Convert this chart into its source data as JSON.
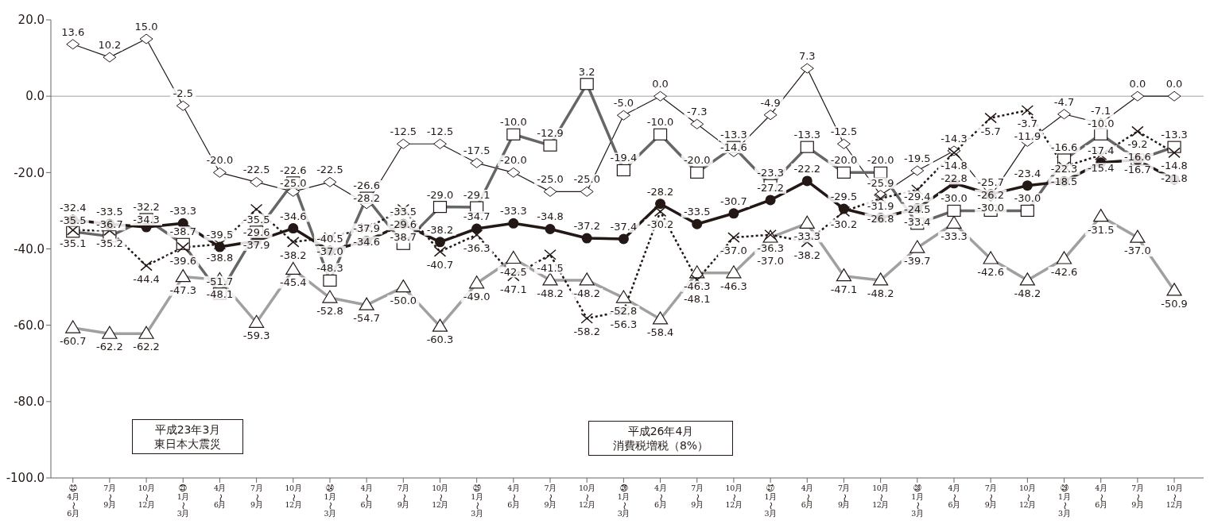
{
  "chart_data": {
    "type": "line",
    "categories": [
      "㉒4月〜6月",
      "7月〜9月",
      "10月〜12月",
      "㉓1月〜3月",
      "4月〜6月",
      "7月〜9月",
      "10月〜12月",
      "㉔1月〜3月",
      "4月〜6月",
      "7月〜9月",
      "10月〜12月",
      "㉕1月〜3月",
      "4月〜6月",
      "7月〜9月",
      "10月〜12月",
      "㉖1月〜3月",
      "4月〜6月",
      "7月〜9月",
      "10月〜12月",
      "㉗1月〜3月",
      "4月〜6月",
      "7月〜9月",
      "10月〜12月",
      "㉘1月〜3月",
      "4月〜6月",
      "7月〜9月",
      "10月〜12月",
      "㉙1月〜3月",
      "4月〜6月",
      "7月〜9月",
      "10月〜12月"
    ],
    "series": [
      {
        "color": "#a0a0a0",
        "marker": "triangle",
        "line_style": "solid",
        "values": [
          -60.7,
          -62.2,
          -62.2,
          -47.3,
          -48.1,
          -59.3,
          -45.4,
          -52.8,
          -54.7,
          -50.0,
          -60.3,
          -49.0,
          -42.5,
          -48.2,
          -48.2,
          -52.8,
          -58.4,
          -46.3,
          -46.3,
          -37.0,
          -33.3,
          -47.1,
          -48.2,
          -39.7,
          -33.3,
          -42.6,
          -48.2,
          -42.6,
          -31.5,
          -37.0,
          -50.9
        ],
        "value_labels": [
          "-60.7",
          "-62.2",
          "-62.2",
          "-47.3",
          "-48.1",
          "-59.3",
          "-45.4",
          "-52.8",
          "-54.7",
          "-50.0",
          "-60.3",
          "-49.0",
          "-42.5",
          "-48.2",
          "-48.2",
          "-52.8",
          "-58.4",
          "-46.3",
          "-46.3",
          "-37.0",
          "-33.3",
          "-47.1",
          "-48.2",
          "-39.7",
          "-33.3",
          "-42.6",
          "-48.2",
          "-42.6",
          "-31.5",
          "-37.0",
          "-50.9"
        ]
      },
      {
        "color": "#231815",
        "marker": "diamond",
        "line_style": "solid",
        "values": [
          13.6,
          10.2,
          15.0,
          -2.5,
          -20.0,
          -22.5,
          -25.0,
          -22.5,
          -28.2,
          -12.5,
          -12.5,
          -17.5,
          -20.0,
          -25.0,
          -25.0,
          -5.0,
          0.0,
          -7.3,
          -14.6,
          -4.9,
          7.3,
          -12.5,
          -25.9,
          -19.5,
          -14.3,
          -26.2,
          -11.9,
          -4.7,
          -7.1,
          0.0,
          0.0
        ],
        "value_labels": [
          "13.6",
          "10.2",
          "15.0",
          "-2.5",
          "-20.0",
          "-22.5",
          "-25.0",
          "-22.5",
          "-28.2",
          "-12.5",
          "-12.5",
          "-17.5",
          "-20.0",
          "-25.0",
          "-25.0",
          "-5.0",
          "0.0",
          "-7.3",
          "-14.6",
          "-4.9",
          "7.3",
          "-12.5",
          "-25.9",
          "-19.5",
          "-14.3",
          "-26.2",
          "-11.9",
          "-4.7",
          "-7.1",
          "0.0",
          "0.0"
        ]
      },
      {
        "color": "#666666",
        "marker": "square",
        "line_style": "solid",
        "values": [
          -35.5,
          -36.7,
          -32.2,
          -38.7,
          -51.7,
          -35.5,
          -22.6,
          -48.3,
          -26.6,
          -38.7,
          -29.0,
          -29.1,
          -10.0,
          -12.9,
          3.2,
          -19.4,
          -10.0,
          -20.0,
          -13.3,
          -23.3,
          -13.3,
          -20.0,
          -20.0,
          -33.4,
          -30.0,
          -30.0,
          -30.0,
          -16.6,
          -10.0,
          -16.6,
          -13.3
        ],
        "value_labels": [
          "-35.5",
          "-36.7",
          "-32.2",
          "-38.7",
          "-51.7",
          "-35.5",
          "-22.6",
          "-48.3",
          "-26.6",
          "-38.7",
          "-29.0",
          "-29.1",
          "-10.0",
          "-12.9",
          "3.2",
          "-19.4",
          "-10.0",
          "-20.0",
          "-13.3",
          "-23.3",
          "-13.3",
          "-20.0",
          "-20.0",
          "-33.4",
          "-30.0",
          "-30.0",
          "-30.0",
          "-16.6",
          "-10.0",
          "-16.6",
          "-13.3"
        ]
      },
      {
        "color": "#231815",
        "marker": "cross",
        "line_style": "dotted",
        "values": [
          -35.1,
          -35.2,
          -44.4,
          -39.6,
          -38.8,
          -29.6,
          -38.2,
          -37.0,
          -34.6,
          -29.6,
          -40.7,
          -36.3,
          -47.1,
          -41.5,
          -58.2,
          -56.3,
          -30.2,
          -48.1,
          -37.0,
          -36.3,
          -38.2,
          -30.2,
          -26.8,
          -24.5,
          -14.8,
          -5.7,
          -3.7,
          -18.5,
          -15.4,
          -9.2,
          -14.8
        ],
        "value_labels": [
          "-35.1",
          "-35.2",
          "-44.4",
          "-39.6",
          "-38.8",
          "-29.6",
          "-38.2",
          "-37.0",
          "-34.6",
          "-29.6",
          "-40.7",
          "-36.3",
          "-47.1",
          "-41.5",
          "-58.2",
          "-56.3",
          "-30.2",
          "-48.1",
          "-37.0",
          "-36.3",
          "-38.2",
          "-30.2",
          "-26.8",
          "-24.5",
          "-14.8",
          "-5.7",
          "-3.7",
          "-18.5",
          "-15.4",
          "-9.2",
          "-14.8"
        ]
      },
      {
        "color": "#231815",
        "marker": "circle",
        "line_style": "solid",
        "values": [
          -32.4,
          -33.5,
          -34.3,
          -33.3,
          -39.5,
          -37.9,
          -34.6,
          -40.5,
          -37.9,
          -33.5,
          -38.2,
          -34.7,
          -33.3,
          -34.8,
          -37.2,
          -37.4,
          -28.2,
          -33.5,
          -30.7,
          -27.2,
          -22.2,
          -29.5,
          -31.9,
          -29.4,
          -22.8,
          -25.7,
          -23.4,
          -22.3,
          -17.4,
          -16.7,
          -21.8
        ],
        "value_labels": [
          "-32.4",
          "-33.5",
          "-34.3",
          "-33.3",
          "-39.5",
          "-37.9",
          "-34.6",
          "-40.5",
          "-37.9",
          "-33.5",
          "-38.2",
          "-34.7",
          "-33.3",
          "-34.8",
          "-37.2",
          "-37.4",
          "-28.2",
          "-33.5",
          "-30.7",
          "-27.2",
          "-22.2",
          "-29.5",
          "-31.9",
          "-29.4",
          "-22.8",
          "-25.7",
          "-23.4",
          "-22.3",
          "-17.4",
          "-16.7",
          "-21.8"
        ]
      }
    ],
    "ylim": [
      -100,
      20
    ],
    "yticks": [
      {
        "value": -100,
        "label": "-100.0"
      },
      {
        "value": -80,
        "label": "-80.0"
      },
      {
        "value": -60,
        "label": "-60.0"
      },
      {
        "value": -40,
        "label": "-40.0"
      },
      {
        "value": -20,
        "label": "-20.0"
      },
      {
        "value": 0,
        "label": "0.0"
      },
      {
        "value": 20,
        "label": "20.0"
      }
    ],
    "ref_lines": [
      {
        "axis": "y",
        "value": 0,
        "color": "#a0a0a0"
      }
    ],
    "annotations": [
      "平成23年3月",
      "東日本大震災",
      "平成26年4月",
      "消費税増税（8%）"
    ],
    "grid": false,
    "legend": false
  }
}
